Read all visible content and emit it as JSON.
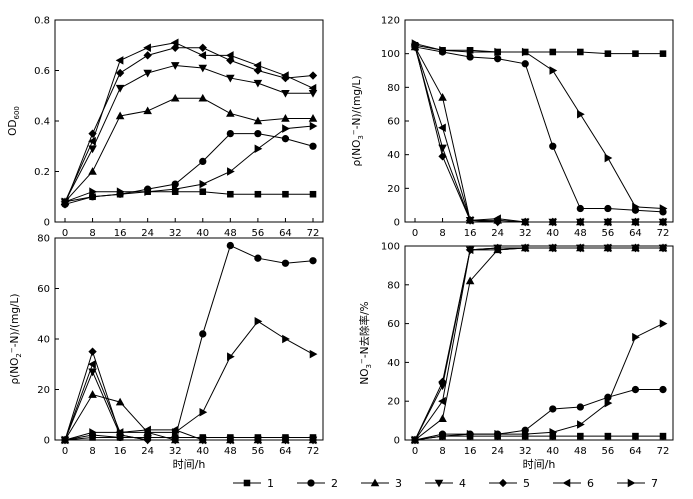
{
  "legend": [
    "1",
    "2",
    "3",
    "4",
    "5",
    "6",
    "7"
  ],
  "chart_data": [
    {
      "type": "line",
      "ylabel": "OD600",
      "ylabel_base": "OD",
      "ylabel_sub": "600",
      "xlabel": "",
      "x": [
        0,
        8,
        16,
        24,
        32,
        40,
        48,
        56,
        64,
        72
      ],
      "x_ticks": [
        "0",
        "8",
        "16",
        "24",
        "32",
        "40",
        "48",
        "56",
        "64",
        "72"
      ],
      "ylim": [
        0,
        0.8
      ],
      "y_ticks": [
        "0",
        "0.2",
        "0.4",
        "0.6",
        "0.8"
      ],
      "series": [
        {
          "name": "1",
          "marker": "square",
          "values": [
            0.08,
            0.1,
            0.11,
            0.12,
            0.12,
            0.12,
            0.11,
            0.11,
            0.11,
            0.11
          ]
        },
        {
          "name": "2",
          "marker": "circle",
          "values": [
            0.07,
            0.1,
            0.11,
            0.13,
            0.15,
            0.24,
            0.35,
            0.35,
            0.33,
            0.3
          ]
        },
        {
          "name": "3",
          "marker": "triangle",
          "values": [
            0.08,
            0.2,
            0.42,
            0.44,
            0.49,
            0.49,
            0.43,
            0.4,
            0.41,
            0.41
          ]
        },
        {
          "name": "4",
          "marker": "tri-down",
          "values": [
            0.08,
            0.29,
            0.53,
            0.59,
            0.62,
            0.61,
            0.57,
            0.55,
            0.51,
            0.51
          ]
        },
        {
          "name": "5",
          "marker": "diamond",
          "values": [
            0.07,
            0.35,
            0.59,
            0.66,
            0.69,
            0.69,
            0.64,
            0.6,
            0.57,
            0.58
          ]
        },
        {
          "name": "6",
          "marker": "tri-left",
          "values": [
            0.08,
            0.32,
            0.64,
            0.69,
            0.71,
            0.66,
            0.66,
            0.62,
            0.58,
            0.53
          ]
        },
        {
          "name": "7",
          "marker": "tri-right",
          "values": [
            0.08,
            0.12,
            0.12,
            0.12,
            0.13,
            0.15,
            0.2,
            0.29,
            0.37,
            0.38
          ]
        }
      ]
    },
    {
      "type": "line",
      "ylabel": "ρ(NO3−-N)/(mg/L)",
      "ylabel_pre": "ρ(NO",
      "ylabel_sub": "3",
      "ylabel_sup": "−",
      "ylabel_post": "-N)/(mg/L)",
      "xlabel": "",
      "x": [
        0,
        8,
        16,
        24,
        32,
        40,
        48,
        56,
        64,
        72
      ],
      "x_ticks": [
        "0",
        "8",
        "16",
        "24",
        "32",
        "40",
        "48",
        "56",
        "64",
        "72"
      ],
      "ylim": [
        0,
        120
      ],
      "y_ticks": [
        "0",
        "20",
        "40",
        "60",
        "80",
        "100",
        "120"
      ],
      "series": [
        {
          "name": "1",
          "marker": "square",
          "values": [
            105,
            102,
            102,
            101,
            101,
            101,
            101,
            100,
            100,
            100
          ]
        },
        {
          "name": "2",
          "marker": "circle",
          "values": [
            104,
            101,
            98,
            97,
            94,
            45,
            8,
            8,
            7,
            6
          ]
        },
        {
          "name": "3",
          "marker": "triangle",
          "values": [
            104,
            74,
            1,
            1,
            0,
            0,
            0,
            0,
            0,
            0
          ]
        },
        {
          "name": "4",
          "marker": "tri-down",
          "values": [
            104,
            44,
            1,
            0,
            0,
            0,
            0,
            0,
            0,
            0
          ]
        },
        {
          "name": "5",
          "marker": "diamond",
          "values": [
            105,
            39,
            1,
            0,
            0,
            0,
            0,
            0,
            0,
            0
          ]
        },
        {
          "name": "6",
          "marker": "tri-left",
          "values": [
            104,
            56,
            1,
            2,
            0,
            0,
            0,
            0,
            0,
            0
          ]
        },
        {
          "name": "7",
          "marker": "tri-right",
          "values": [
            106,
            102,
            101,
            101,
            101,
            90,
            64,
            38,
            9,
            8
          ]
        }
      ]
    },
    {
      "type": "line",
      "ylabel": "ρ(NO2−-N)/(mg/L)",
      "ylabel_pre": "ρ(NO",
      "ylabel_sub": "2",
      "ylabel_sup": "−",
      "ylabel_post": "-N)/(mg/L)",
      "xlabel": "时间/h",
      "x": [
        0,
        8,
        16,
        24,
        32,
        40,
        48,
        56,
        64,
        72
      ],
      "x_ticks": [
        "0",
        "8",
        "16",
        "24",
        "32",
        "40",
        "48",
        "56",
        "64",
        "72"
      ],
      "ylim": [
        0,
        80
      ],
      "y_ticks": [
        "0",
        "20",
        "40",
        "60",
        "80"
      ],
      "series": [
        {
          "name": "1",
          "marker": "square",
          "values": [
            0,
            1,
            1,
            1,
            1,
            1,
            1,
            1,
            1,
            1
          ]
        },
        {
          "name": "2",
          "marker": "circle",
          "values": [
            0,
            2,
            1,
            1,
            1,
            42,
            77,
            72,
            70,
            71
          ]
        },
        {
          "name": "3",
          "marker": "triangle",
          "values": [
            0,
            18,
            15,
            3,
            0,
            0,
            0,
            0,
            0,
            0
          ]
        },
        {
          "name": "4",
          "marker": "tri-down",
          "values": [
            0,
            27,
            2,
            0,
            0,
            0,
            0,
            0,
            0,
            0
          ]
        },
        {
          "name": "5",
          "marker": "diamond",
          "values": [
            0,
            35,
            2,
            0,
            0,
            0,
            0,
            0,
            0,
            0
          ]
        },
        {
          "name": "6",
          "marker": "tri-left",
          "values": [
            0,
            30,
            3,
            4,
            4,
            0,
            0,
            0,
            0,
            0
          ]
        },
        {
          "name": "7",
          "marker": "tri-right",
          "values": [
            0,
            3,
            3,
            3,
            3,
            11,
            33,
            47,
            40,
            34
          ]
        }
      ]
    },
    {
      "type": "line",
      "ylabel": "NO3−-N去除率/%",
      "ylabel_pre": "NO",
      "ylabel_sub": "3",
      "ylabel_sup": "−",
      "ylabel_post": "-N去除率/%",
      "xlabel": "时间/h",
      "x": [
        0,
        8,
        16,
        24,
        32,
        40,
        48,
        56,
        64,
        72
      ],
      "x_ticks": [
        "0",
        "8",
        "16",
        "24",
        "32",
        "40",
        "48",
        "56",
        "64",
        "72"
      ],
      "ylim": [
        0,
        100
      ],
      "y_ticks": [
        "0",
        "20",
        "40",
        "60",
        "80",
        "100"
      ],
      "series": [
        {
          "name": "1",
          "marker": "square",
          "values": [
            0,
            2,
            2,
            2,
            2,
            2,
            2,
            2,
            2,
            2
          ]
        },
        {
          "name": "2",
          "marker": "circle",
          "values": [
            0,
            3,
            3,
            3,
            5,
            16,
            17,
            22,
            26,
            26
          ]
        },
        {
          "name": "3",
          "marker": "triangle",
          "values": [
            0,
            11,
            82,
            98,
            99,
            99,
            99,
            99,
            99,
            99
          ]
        },
        {
          "name": "4",
          "marker": "tri-down",
          "values": [
            0,
            28,
            98,
            99,
            99,
            99,
            99,
            99,
            99,
            99
          ]
        },
        {
          "name": "5",
          "marker": "diamond",
          "values": [
            0,
            30,
            98,
            99,
            99,
            99,
            99,
            99,
            99,
            99
          ]
        },
        {
          "name": "6",
          "marker": "tri-left",
          "values": [
            0,
            20,
            98,
            98,
            99,
            99,
            99,
            99,
            99,
            99
          ]
        },
        {
          "name": "7",
          "marker": "tri-right",
          "values": [
            0,
            2,
            3,
            3,
            3,
            4,
            8,
            19,
            53,
            60
          ]
        }
      ]
    }
  ]
}
